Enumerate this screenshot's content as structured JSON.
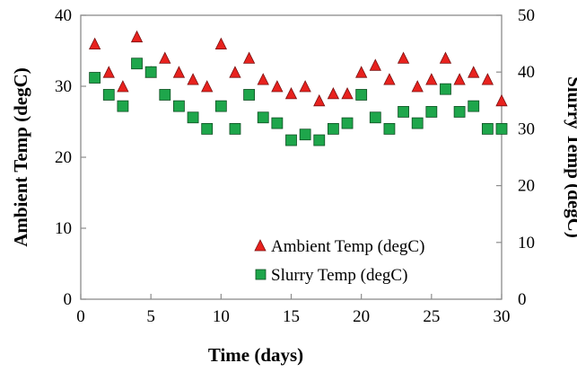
{
  "chart_data": {
    "type": "scatter",
    "title": "",
    "xlabel": "Time (days)",
    "ylabel_left": "Ambient Temp (degC)",
    "ylabel_right": "Slurry Temp (degC)",
    "xlim": [
      0,
      30
    ],
    "xticks": [
      0,
      5,
      10,
      15,
      20,
      25,
      30
    ],
    "ylim_left": [
      0,
      40
    ],
    "yticks_left": [
      0,
      10,
      20,
      30,
      40
    ],
    "ylim_right": [
      0,
      50
    ],
    "yticks_right": [
      0,
      10,
      20,
      30,
      40,
      50
    ],
    "grid": false,
    "legend_position": "bottom-right",
    "series": [
      {
        "name": "Ambient Temp (degC)",
        "axis": "left",
        "marker": "triangle",
        "color": "#e8221e",
        "x": [
          1,
          2,
          3,
          4,
          5,
          6,
          7,
          8,
          9,
          10,
          11,
          12,
          13,
          14,
          15,
          16,
          17,
          18,
          19,
          20,
          21,
          22,
          23,
          24,
          25,
          26,
          27,
          28,
          29,
          30
        ],
        "y": [
          36,
          32,
          30,
          37,
          32,
          34,
          32,
          31,
          30,
          36,
          32,
          34,
          31,
          30,
          29,
          30,
          28,
          29,
          29,
          32,
          33,
          31,
          34,
          30,
          31,
          34,
          31,
          32,
          31,
          28
        ]
      },
      {
        "name": "Slurry Temp (degC)",
        "axis": "right",
        "marker": "square",
        "color": "#1ea64b",
        "x": [
          1,
          2,
          3,
          4,
          5,
          6,
          7,
          8,
          9,
          10,
          11,
          12,
          13,
          14,
          15,
          16,
          17,
          18,
          19,
          20,
          21,
          22,
          23,
          24,
          25,
          26,
          27,
          28,
          29,
          30
        ],
        "y": [
          39,
          36,
          34,
          41.5,
          40,
          36,
          34,
          32,
          30,
          34,
          30,
          36,
          32,
          31,
          28,
          29,
          28,
          30,
          31,
          36,
          32,
          30,
          33,
          31,
          33,
          37,
          33,
          34,
          30,
          30
        ]
      }
    ]
  }
}
